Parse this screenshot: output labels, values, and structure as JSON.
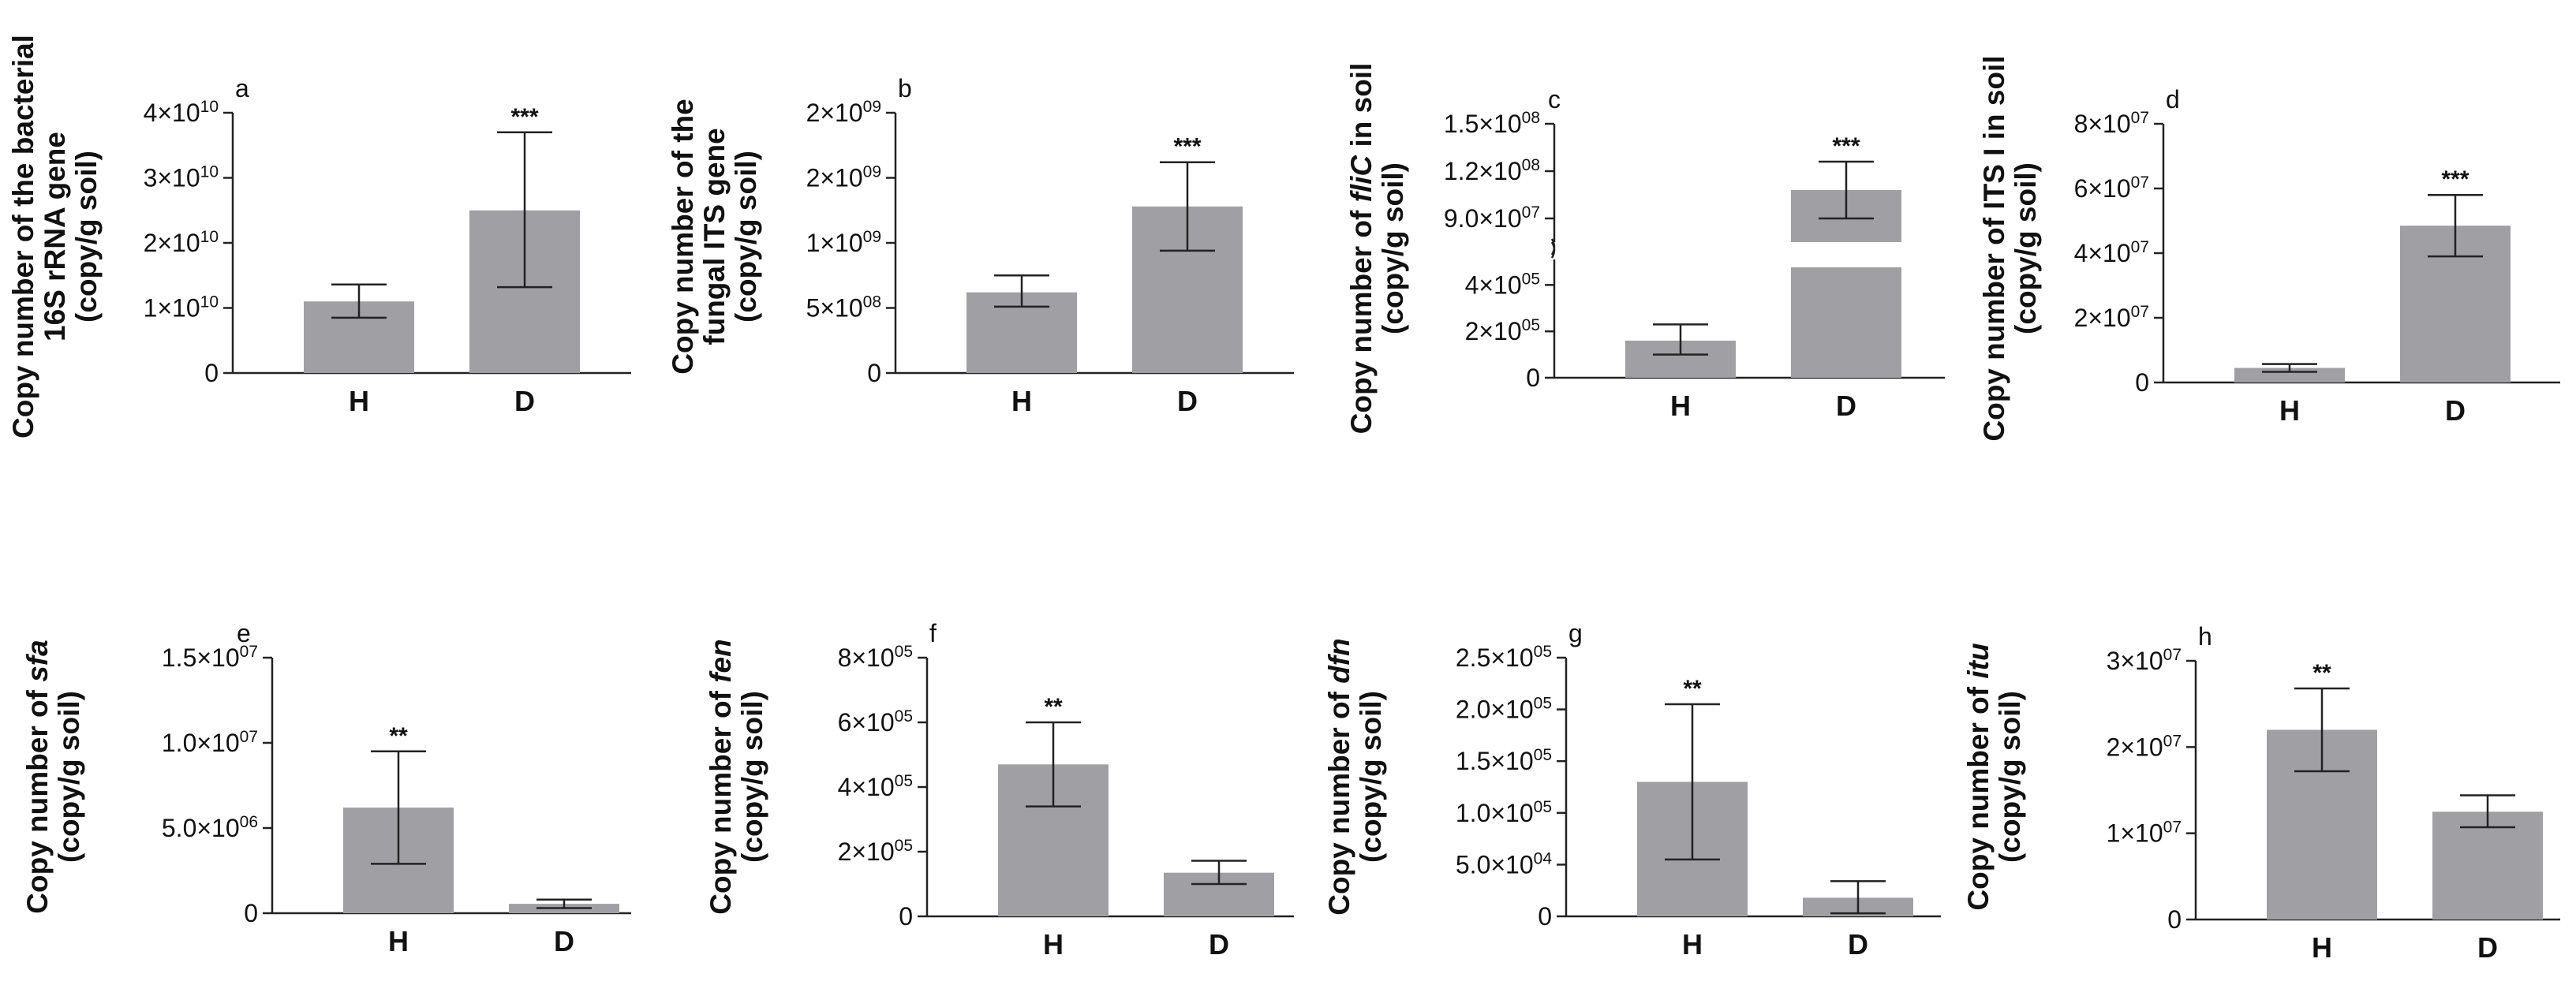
{
  "colors": {
    "bar": "#a0a0a4",
    "axis": "#222222",
    "text": "#111111"
  },
  "chart_data": [
    {
      "panel": "a",
      "type": "bar",
      "ylabel_lines": [
        [
          {
            "t": "Copy number of the bacterial"
          }
        ],
        [
          {
            "t": "16S rRNA gene"
          }
        ],
        [
          {
            "t": "(copy/g soil)"
          }
        ]
      ],
      "ylim": [
        0,
        40000000000.0
      ],
      "ticks": [
        {
          "v": 0,
          "base": "0"
        },
        {
          "v": 10000000000.0,
          "base": "1×10",
          "exp": "10"
        },
        {
          "v": 20000000000.0,
          "base": "2×10",
          "exp": "10"
        },
        {
          "v": 30000000000.0,
          "base": "3×10",
          "exp": "10"
        },
        {
          "v": 40000000000.0,
          "base": "4×10",
          "exp": "10"
        }
      ],
      "categories": [
        "H",
        "D"
      ],
      "values": [
        11000000000.0,
        25000000000.0
      ],
      "err_low": [
        8500000000.0,
        13200000000.0
      ],
      "err_high": [
        13600000000.0,
        37000000000.0
      ],
      "sig": [
        "",
        "***"
      ]
    },
    {
      "panel": "b",
      "type": "bar",
      "ylabel_lines": [
        [
          {
            "t": "Copy number of the"
          }
        ],
        [
          {
            "t": "fungal ITS gene"
          }
        ],
        [
          {
            "t": "(copy/g soil)"
          }
        ]
      ],
      "ylim": [
        0,
        2000000000.0
      ],
      "ticks": [
        {
          "v": 0,
          "base": "0"
        },
        {
          "v": 500000000.0,
          "base": "5×10",
          "exp": "08"
        },
        {
          "v": 1000000000.0,
          "base": "1×10",
          "exp": "09"
        },
        {
          "v": 1500000000.0,
          "base": "2×10",
          "exp": "09"
        },
        {
          "v": 2000000000.0,
          "base": "2×10",
          "exp": "09"
        }
      ],
      "categories": [
        "H",
        "D"
      ],
      "values": [
        620000000.0,
        1280000000.0
      ],
      "err_low": [
        510000000.0,
        940000000.0
      ],
      "err_high": [
        750000000.0,
        1620000000.0
      ],
      "sig": [
        "",
        "***"
      ]
    },
    {
      "panel": "c",
      "type": "bar",
      "ylabel_lines": [
        [
          {
            "t": "Copy number of "
          },
          {
            "t": "fliC",
            "i": true
          },
          {
            "t": " in soil"
          }
        ],
        [
          {
            "t": "(copy/g soil)"
          }
        ]
      ],
      "broken_axis": true,
      "lower_ylim": [
        0,
        510000.0
      ],
      "upper_ylim": [
        75000000.0,
        150000000.0
      ],
      "ticks_lower": [
        {
          "v": 0,
          "base": "0"
        },
        {
          "v": 200000.0,
          "base": "2×10",
          "exp": "05"
        },
        {
          "v": 400000.0,
          "base": "4×10",
          "exp": "05"
        }
      ],
      "ticks_upper": [
        {
          "v": 90000000.0,
          "base": "9.0×10",
          "exp": "07"
        },
        {
          "v": 120000000.0,
          "base": "1.2×10",
          "exp": "08"
        },
        {
          "v": 150000000.0,
          "base": "1.5×10",
          "exp": "08"
        }
      ],
      "categories": [
        "H",
        "D"
      ],
      "values": [
        160000.0,
        108000000.0
      ],
      "err_low": [
        100000.0,
        90000000.0
      ],
      "err_high": [
        230000.0,
        126000000.0
      ],
      "sig": [
        "",
        "***"
      ]
    },
    {
      "panel": "d",
      "type": "bar",
      "ylabel_lines": [
        [
          {
            "t": "Copy number of ITS I in soil"
          }
        ],
        [
          {
            "t": "(copy/g soil)"
          }
        ]
      ],
      "ylim": [
        0,
        80000000.0
      ],
      "ticks": [
        {
          "v": 0,
          "base": "0"
        },
        {
          "v": 20000000.0,
          "base": "2×10",
          "exp": "07"
        },
        {
          "v": 40000000.0,
          "base": "4×10",
          "exp": "07"
        },
        {
          "v": 60000000.0,
          "base": "6×10",
          "exp": "07"
        },
        {
          "v": 80000000.0,
          "base": "8×10",
          "exp": "07"
        }
      ],
      "categories": [
        "H",
        "D"
      ],
      "values": [
        4500000.0,
        48500000.0
      ],
      "err_low": [
        3300000.0,
        39000000.0
      ],
      "err_high": [
        5700000.0,
        58000000.0
      ],
      "sig": [
        "",
        "***"
      ]
    },
    {
      "panel": "e",
      "type": "bar",
      "ylabel_lines": [
        [
          {
            "t": "Copy number of  "
          },
          {
            "t": "sfa",
            "i": true
          }
        ],
        [
          {
            "t": "(copy/g soil)"
          }
        ]
      ],
      "ylim": [
        0,
        15000000.0
      ],
      "ticks": [
        {
          "v": 0,
          "base": "0"
        },
        {
          "v": 5000000.0,
          "base": "5.0×10",
          "exp": "06"
        },
        {
          "v": 10000000.0,
          "base": "1.0×10",
          "exp": "07"
        },
        {
          "v": 15000000.0,
          "base": "1.5×10",
          "exp": "07"
        }
      ],
      "categories": [
        "H",
        "D"
      ],
      "values": [
        6200000.0,
        550000.0
      ],
      "err_low": [
        2900000.0,
        300000.0
      ],
      "err_high": [
        9500000.0,
        800000.0
      ],
      "sig": [
        "**",
        ""
      ]
    },
    {
      "panel": "f",
      "type": "bar",
      "ylabel_lines": [
        [
          {
            "t": "Copy number of  "
          },
          {
            "t": "fen",
            "i": true
          }
        ],
        [
          {
            "t": "(copy/g soil)"
          }
        ]
      ],
      "ylim": [
        0,
        800000.0
      ],
      "ticks": [
        {
          "v": 0,
          "base": "0"
        },
        {
          "v": 200000.0,
          "base": "2×10",
          "exp": "05"
        },
        {
          "v": 400000.0,
          "base": "4×10",
          "exp": "05"
        },
        {
          "v": 600000.0,
          "base": "6×10",
          "exp": "05"
        },
        {
          "v": 800000.0,
          "base": "8×10",
          "exp": "05"
        }
      ],
      "categories": [
        "H",
        "D"
      ],
      "values": [
        470000.0,
        135000.0
      ],
      "err_low": [
        340000.0,
        100000.0
      ],
      "err_high": [
        600000.0,
        172000.0
      ],
      "sig": [
        "**",
        ""
      ]
    },
    {
      "panel": "g",
      "type": "bar",
      "ylabel_lines": [
        [
          {
            "t": "Copy number of  "
          },
          {
            "t": "dfn",
            "i": true
          }
        ],
        [
          {
            "t": "(copy/g soil)"
          }
        ]
      ],
      "ylim": [
        0,
        250000.0
      ],
      "ticks": [
        {
          "v": 0,
          "base": "0"
        },
        {
          "v": 50000.0,
          "base": "5.0×10",
          "exp": "04"
        },
        {
          "v": 100000.0,
          "base": "1.0×10",
          "exp": "05"
        },
        {
          "v": 150000.0,
          "base": "1.5×10",
          "exp": "05"
        },
        {
          "v": 200000.0,
          "base": "2.0×10",
          "exp": "05"
        },
        {
          "v": 250000.0,
          "base": "2.5×10",
          "exp": "05"
        }
      ],
      "categories": [
        "H",
        "D"
      ],
      "values": [
        130000.0,
        18000.0
      ],
      "err_low": [
        55000.0,
        3000.0
      ],
      "err_high": [
        205000.0,
        34000.0
      ],
      "sig": [
        "**",
        ""
      ]
    },
    {
      "panel": "h",
      "type": "bar",
      "ylabel_lines": [
        [
          {
            "t": "Copy number of  "
          },
          {
            "t": "itu",
            "i": true
          }
        ],
        [
          {
            "t": "(copy/g soil)"
          }
        ]
      ],
      "ylim": [
        0,
        30000000.0
      ],
      "ticks": [
        {
          "v": 0,
          "base": "0"
        },
        {
          "v": 10000000.0,
          "base": "1×10",
          "exp": "07"
        },
        {
          "v": 20000000.0,
          "base": "2×10",
          "exp": "07"
        },
        {
          "v": 30000000.0,
          "base": "3×10",
          "exp": "07"
        }
      ],
      "categories": [
        "H",
        "D"
      ],
      "values": [
        22000000.0,
        12500000.0
      ],
      "err_low": [
        17200000.0,
        10700000.0
      ],
      "err_high": [
        26800000.0,
        14400000.0
      ],
      "sig": [
        "**",
        ""
      ]
    }
  ]
}
